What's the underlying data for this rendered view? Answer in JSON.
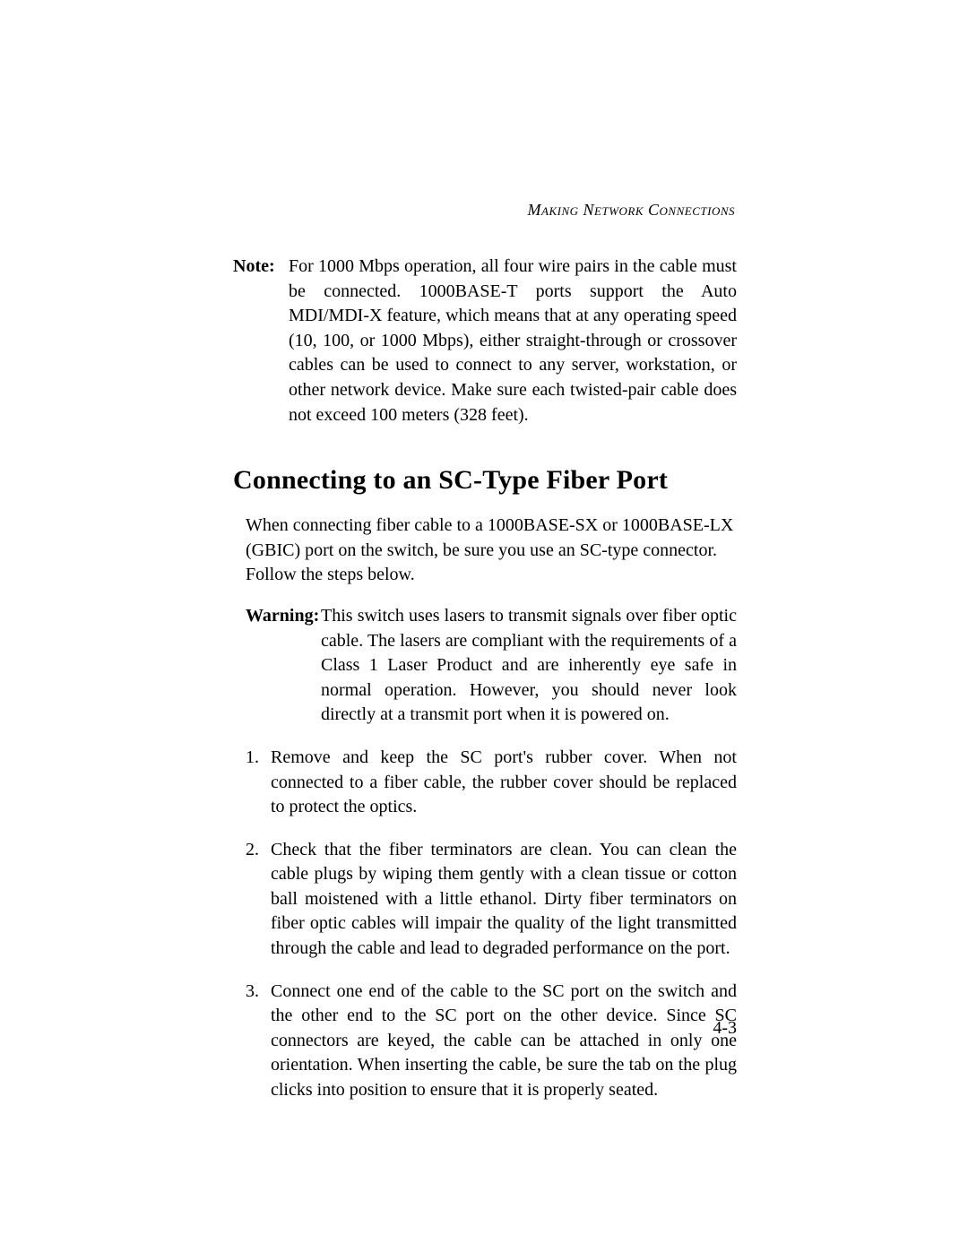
{
  "typography": {
    "body_font": "Garamond / Georgia serif",
    "body_size_pt": 11,
    "heading_size_pt": 16,
    "heading_weight": "bold",
    "running_head_style": "italic small-caps",
    "text_color": "#000000",
    "background_color": "#ffffff",
    "line_height": 1.38,
    "alignment_body": "justify"
  },
  "running_head": "Making Network Connections",
  "note": {
    "label": "Note:",
    "text": "For 1000 Mbps operation, all four wire pairs in the cable must be connected. 1000BASE-T ports support the Auto MDI/MDI-X feature, which means that at any operating speed (10, 100, or 1000 Mbps), either straight-through or crossover cables can be used to connect to any server, workstation, or other network device. Make sure each twisted-pair cable does not exceed 100 meters (328 feet)."
  },
  "section_heading": "Connecting to an SC-Type Fiber Port",
  "intro_para": "When connecting fiber cable to a 1000BASE-SX or 1000BASE-LX (GBIC) port on the switch, be sure you use an SC-type connector. Follow the steps below.",
  "warning": {
    "label": "Warning:",
    "text": "This switch uses lasers to transmit signals over fiber optic cable. The lasers are compliant with the requirements of a Class 1 Laser Product and are inherently eye safe in normal operation. However, you should never look directly at a transmit port when it is powered on."
  },
  "steps": [
    {
      "marker": "1.",
      "text": "Remove and keep the SC port's rubber cover. When not connected to a fiber cable, the rubber cover should be replaced to protect the optics."
    },
    {
      "marker": "2.",
      "text": "Check that the fiber terminators are clean. You can clean the cable plugs by wiping them gently with a clean tissue or cotton ball moistened with a little ethanol. Dirty fiber terminators on fiber optic cables will impair the quality of the light transmitted through the cable and lead to degraded performance on the port."
    },
    {
      "marker": "3.",
      "text": "Connect one end of the cable to the SC port on the switch and the other end to the SC port on the other device. Since SC connectors are keyed, the cable can be attached in only one orientation. When inserting the cable, be sure the tab on the plug clicks into position to ensure that it is properly seated."
    }
  ],
  "page_number": "4-3"
}
